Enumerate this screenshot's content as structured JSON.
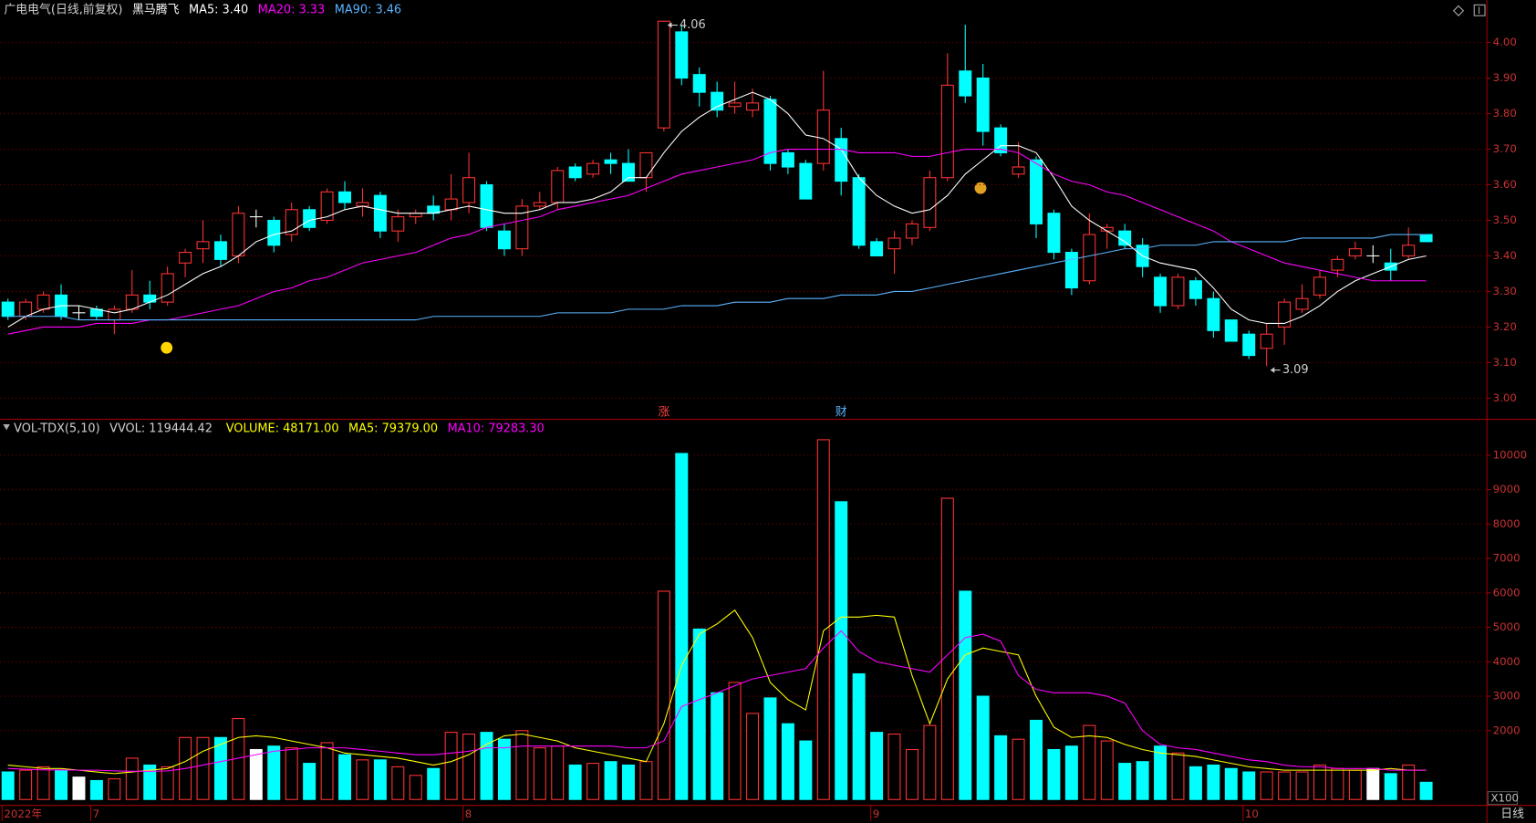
{
  "chart_data": [
    {
      "type": "candlestick",
      "title": "广电电气(日线,前复权)",
      "indicator": "黑马腾飞",
      "categories": [
        "2022年",
        null,
        null,
        null,
        null,
        "7",
        null,
        null,
        null,
        null,
        null,
        null,
        null,
        null,
        null,
        null,
        null,
        null,
        null,
        null,
        null,
        null,
        null,
        null,
        null,
        null,
        "8",
        null,
        null,
        null,
        null,
        null,
        null,
        null,
        null,
        null,
        null,
        null,
        null,
        null,
        null,
        null,
        null,
        null,
        null,
        null,
        null,
        null,
        null,
        "9",
        null,
        null,
        null,
        null,
        null,
        null,
        null,
        null,
        null,
        null,
        null,
        null,
        null,
        null,
        null,
        null,
        null,
        null,
        null,
        null,
        "10",
        null,
        null,
        null,
        null,
        null,
        null,
        null,
        null,
        null,
        null
      ],
      "open": [
        3.27,
        3.23,
        3.25,
        3.29,
        3.24,
        3.25,
        3.22,
        3.25,
        3.29,
        3.27,
        3.38,
        3.42,
        3.44,
        3.4,
        3.51,
        3.5,
        3.46,
        3.53,
        3.5,
        3.58,
        3.54,
        3.57,
        3.47,
        3.51,
        3.54,
        3.53,
        3.55,
        3.6,
        3.47,
        3.42,
        3.54,
        3.55,
        3.65,
        3.63,
        3.67,
        3.66,
        3.62,
        3.76,
        4.03,
        3.91,
        3.86,
        3.82,
        3.81,
        3.84,
        3.69,
        3.66,
        3.66,
        3.73,
        3.62,
        3.44,
        3.42,
        3.45,
        3.48,
        3.62,
        3.92,
        3.9,
        3.76,
        3.63,
        3.67,
        3.52,
        3.41,
        3.33,
        3.47,
        3.47,
        3.43,
        3.34,
        3.26,
        3.33,
        3.28,
        3.22,
        3.18,
        3.14,
        3.2,
        3.25,
        3.29,
        3.36,
        3.4,
        3.4,
        3.38,
        3.4,
        3.46
      ],
      "high": [
        3.28,
        3.28,
        3.3,
        3.32,
        3.26,
        3.26,
        3.26,
        3.36,
        3.33,
        3.37,
        3.42,
        3.5,
        3.46,
        3.54,
        3.53,
        3.51,
        3.55,
        3.54,
        3.59,
        3.61,
        3.59,
        3.58,
        3.53,
        3.53,
        3.57,
        3.63,
        3.69,
        3.61,
        3.49,
        3.56,
        3.58,
        3.65,
        3.66,
        3.67,
        3.69,
        3.7,
        3.69,
        4.06,
        4.05,
        3.93,
        3.89,
        3.89,
        3.87,
        3.85,
        3.7,
        3.67,
        3.92,
        3.76,
        3.63,
        3.45,
        3.47,
        3.5,
        3.64,
        3.97,
        4.05,
        3.94,
        3.77,
        3.72,
        3.68,
        3.53,
        3.42,
        3.52,
        3.49,
        3.49,
        3.45,
        3.35,
        3.35,
        3.34,
        3.3,
        3.22,
        3.19,
        3.21,
        3.28,
        3.32,
        3.36,
        3.4,
        3.44,
        3.43,
        3.42,
        3.48,
        3.46
      ],
      "low": [
        3.22,
        3.22,
        3.24,
        3.22,
        3.22,
        3.22,
        3.18,
        3.24,
        3.25,
        3.26,
        3.34,
        3.38,
        3.37,
        3.38,
        3.48,
        3.41,
        3.44,
        3.47,
        3.49,
        3.53,
        3.51,
        3.45,
        3.44,
        3.49,
        3.5,
        3.5,
        3.52,
        3.47,
        3.4,
        3.4,
        3.53,
        3.53,
        3.61,
        3.62,
        3.63,
        3.61,
        3.58,
        3.75,
        3.88,
        3.82,
        3.79,
        3.8,
        3.79,
        3.64,
        3.63,
        3.56,
        3.64,
        3.57,
        3.42,
        3.4,
        3.35,
        3.43,
        3.47,
        3.61,
        3.83,
        3.71,
        3.68,
        3.62,
        3.45,
        3.39,
        3.29,
        3.32,
        3.42,
        3.42,
        3.34,
        3.24,
        3.25,
        3.26,
        3.17,
        3.16,
        3.11,
        3.09,
        3.15,
        3.24,
        3.28,
        3.34,
        3.39,
        3.38,
        3.33,
        3.39,
        3.44
      ],
      "close": [
        3.23,
        3.27,
        3.29,
        3.23,
        3.24,
        3.23,
        3.25,
        3.29,
        3.27,
        3.35,
        3.41,
        3.44,
        3.39,
        3.52,
        3.51,
        3.43,
        3.53,
        3.48,
        3.58,
        3.55,
        3.55,
        3.47,
        3.51,
        3.52,
        3.52,
        3.56,
        3.62,
        3.48,
        3.42,
        3.54,
        3.55,
        3.64,
        3.62,
        3.66,
        3.66,
        3.61,
        3.69,
        4.06,
        3.9,
        3.86,
        3.81,
        3.83,
        3.83,
        3.66,
        3.65,
        3.56,
        3.81,
        3.61,
        3.43,
        3.4,
        3.45,
        3.49,
        3.62,
        3.88,
        3.85,
        3.75,
        3.69,
        3.65,
        3.49,
        3.41,
        3.31,
        3.46,
        3.48,
        3.43,
        3.37,
        3.26,
        3.34,
        3.28,
        3.19,
        3.16,
        3.12,
        3.18,
        3.27,
        3.28,
        3.34,
        3.39,
        3.42,
        3.4,
        3.36,
        3.43,
        3.44
      ],
      "up_color": "#ff3232",
      "down_color": "#00ffff",
      "flat_color": "#ffffff",
      "series": [
        {
          "name": "MA5: 3.40",
          "color": "#ffffff",
          "values": [
            3.2,
            3.23,
            3.25,
            3.26,
            3.26,
            3.25,
            3.24,
            3.25,
            3.27,
            3.29,
            3.32,
            3.35,
            3.37,
            3.4,
            3.44,
            3.46,
            3.47,
            3.5,
            3.51,
            3.53,
            3.54,
            3.53,
            3.52,
            3.52,
            3.52,
            3.53,
            3.54,
            3.53,
            3.52,
            3.52,
            3.53,
            3.55,
            3.55,
            3.56,
            3.58,
            3.62,
            3.62,
            3.69,
            3.75,
            3.79,
            3.82,
            3.84,
            3.86,
            3.84,
            3.8,
            3.74,
            3.73,
            3.7,
            3.62,
            3.57,
            3.54,
            3.52,
            3.53,
            3.57,
            3.63,
            3.67,
            3.71,
            3.71,
            3.69,
            3.62,
            3.54,
            3.5,
            3.47,
            3.44,
            3.4,
            3.38,
            3.37,
            3.36,
            3.31,
            3.25,
            3.22,
            3.21,
            3.21,
            3.23,
            3.26,
            3.3,
            3.33,
            3.35,
            3.37,
            3.39,
            3.4
          ]
        },
        {
          "name": "MA20: 3.33",
          "color": "#ff00ff",
          "values": [
            3.18,
            3.19,
            3.2,
            3.2,
            3.2,
            3.21,
            3.21,
            3.21,
            3.22,
            3.22,
            3.23,
            3.24,
            3.25,
            3.26,
            3.28,
            3.3,
            3.31,
            3.33,
            3.34,
            3.36,
            3.38,
            3.39,
            3.4,
            3.41,
            3.43,
            3.45,
            3.46,
            3.48,
            3.49,
            3.5,
            3.51,
            3.53,
            3.54,
            3.55,
            3.56,
            3.57,
            3.59,
            3.61,
            3.63,
            3.64,
            3.65,
            3.66,
            3.67,
            3.69,
            3.7,
            3.7,
            3.7,
            3.7,
            3.69,
            3.69,
            3.69,
            3.68,
            3.68,
            3.69,
            3.7,
            3.7,
            3.7,
            3.69,
            3.66,
            3.63,
            3.61,
            3.6,
            3.58,
            3.57,
            3.55,
            3.53,
            3.51,
            3.49,
            3.47,
            3.44,
            3.42,
            3.4,
            3.38,
            3.37,
            3.36,
            3.35,
            3.34,
            3.33,
            3.33,
            3.33,
            3.33
          ]
        },
        {
          "name": "MA90: 3.46",
          "color": "#5ab4ff",
          "values": [
            3.23,
            3.23,
            3.23,
            3.23,
            3.22,
            3.22,
            3.22,
            3.22,
            3.22,
            3.22,
            3.22,
            3.22,
            3.22,
            3.22,
            3.22,
            3.22,
            3.22,
            3.22,
            3.22,
            3.22,
            3.22,
            3.22,
            3.22,
            3.22,
            3.23,
            3.23,
            3.23,
            3.23,
            3.23,
            3.23,
            3.23,
            3.24,
            3.24,
            3.24,
            3.24,
            3.25,
            3.25,
            3.25,
            3.26,
            3.26,
            3.26,
            3.27,
            3.27,
            3.27,
            3.28,
            3.28,
            3.28,
            3.29,
            3.29,
            3.29,
            3.3,
            3.3,
            3.31,
            3.32,
            3.33,
            3.34,
            3.35,
            3.36,
            3.37,
            3.38,
            3.39,
            3.4,
            3.41,
            3.42,
            3.42,
            3.43,
            3.43,
            3.43,
            3.44,
            3.44,
            3.44,
            3.44,
            3.44,
            3.45,
            3.45,
            3.45,
            3.45,
            3.45,
            3.46,
            3.46,
            3.46
          ]
        }
      ],
      "annotations": [
        {
          "index": 37,
          "at": "high",
          "text": "4.06"
        },
        {
          "index": 71,
          "at": "low",
          "text": "3.09"
        }
      ],
      "events": [
        {
          "index": 37,
          "text": "涨",
          "color": "#ff4040"
        },
        {
          "index": 47,
          "text": "财",
          "color": "#5ab4ff"
        }
      ],
      "ylim": [
        2.99,
        4.07
      ],
      "yticks": [
        {
          "value": 3.0,
          "label": "3.00"
        },
        {
          "value": 3.1,
          "label": "3.10"
        },
        {
          "value": 3.2,
          "label": "3.20"
        },
        {
          "value": 3.3,
          "label": "3.30"
        },
        {
          "value": 3.4,
          "label": "3.40"
        },
        {
          "value": 3.5,
          "label": "3.50"
        },
        {
          "value": 3.6,
          "label": "3.60"
        },
        {
          "value": 3.7,
          "label": "3.70"
        },
        {
          "value": 3.8,
          "label": "3.80"
        },
        {
          "value": 3.9,
          "label": "3.90"
        },
        {
          "value": 4.0,
          "label": "4.00"
        }
      ],
      "grid": true,
      "period": "日线"
    },
    {
      "type": "volume",
      "title": "VOL-TDX(5,10)",
      "stat": "VVOL: 119444.42",
      "volume_label": "VOLUME: 48171.00",
      "volume_label_color": "#ffff00",
      "unit": "X100",
      "values": [
        800,
        850,
        950,
        850,
        650,
        550,
        600,
        1200,
        1000,
        950,
        1800,
        1800,
        1800,
        2350,
        1450,
        1550,
        1500,
        1050,
        1650,
        1300,
        1150,
        1150,
        950,
        700,
        900,
        1950,
        1900,
        1950,
        1750,
        2000,
        1500,
        1550,
        1000,
        1050,
        1100,
        1000,
        1100,
        6050,
        10050,
        4950,
        3100,
        3400,
        2500,
        2950,
        2200,
        1700,
        10450,
        8650,
        3650,
        1950,
        1900,
        1450,
        2150,
        8750,
        6050,
        3000,
        1850,
        1750,
        2300,
        1450,
        1550,
        2150,
        1700,
        1050,
        1100,
        1550,
        1350,
        950,
        1000,
        900,
        800,
        800,
        800,
        800,
        1000,
        900,
        850,
        900,
        750,
        1000,
        500
      ],
      "series": [
        {
          "name": "MA5: 79379.00",
          "color": "#ffff00",
          "values": [
            1000,
            950,
            900,
            900,
            850,
            800,
            750,
            800,
            850,
            900,
            1100,
            1400,
            1600,
            1800,
            1850,
            1800,
            1700,
            1600,
            1500,
            1350,
            1300,
            1250,
            1200,
            1100,
            1000,
            1100,
            1300,
            1600,
            1850,
            1900,
            1800,
            1700,
            1500,
            1400,
            1300,
            1200,
            1100,
            2200,
            3900,
            4800,
            5100,
            5500,
            4700,
            3400,
            2900,
            2600,
            4900,
            5300,
            5300,
            5350,
            5300,
            3600,
            2200,
            3500,
            4200,
            4400,
            4300,
            4200,
            3000,
            2100,
            1800,
            1850,
            1800,
            1600,
            1450,
            1350,
            1300,
            1250,
            1150,
            1050,
            950,
            900,
            850,
            850,
            850,
            850,
            850,
            850,
            900,
            850,
            850
          ]
        },
        {
          "name": "MA10: 79283.30",
          "color": "#ff00ff",
          "values": [
            900,
            880,
            860,
            860,
            850,
            850,
            830,
            820,
            820,
            830,
            900,
            1000,
            1100,
            1200,
            1300,
            1400,
            1450,
            1500,
            1500,
            1500,
            1450,
            1400,
            1350,
            1300,
            1300,
            1350,
            1400,
            1500,
            1500,
            1550,
            1550,
            1550,
            1550,
            1550,
            1550,
            1500,
            1500,
            1700,
            2700,
            2900,
            3100,
            3300,
            3500,
            3600,
            3700,
            3800,
            4400,
            4900,
            4300,
            4000,
            3900,
            3800,
            3700,
            4200,
            4700,
            4800,
            4600,
            3600,
            3200,
            3100,
            3100,
            3100,
            3000,
            2800,
            2000,
            1600,
            1500,
            1450,
            1350,
            1250,
            1150,
            1100,
            1000,
            950,
            950,
            900,
            900,
            900,
            850,
            850,
            850
          ]
        }
      ],
      "ylim": [
        0,
        10700
      ],
      "yticks": [
        2000,
        3000,
        4000,
        5000,
        6000,
        7000,
        8000,
        9000,
        10000
      ],
      "grid": true
    }
  ]
}
